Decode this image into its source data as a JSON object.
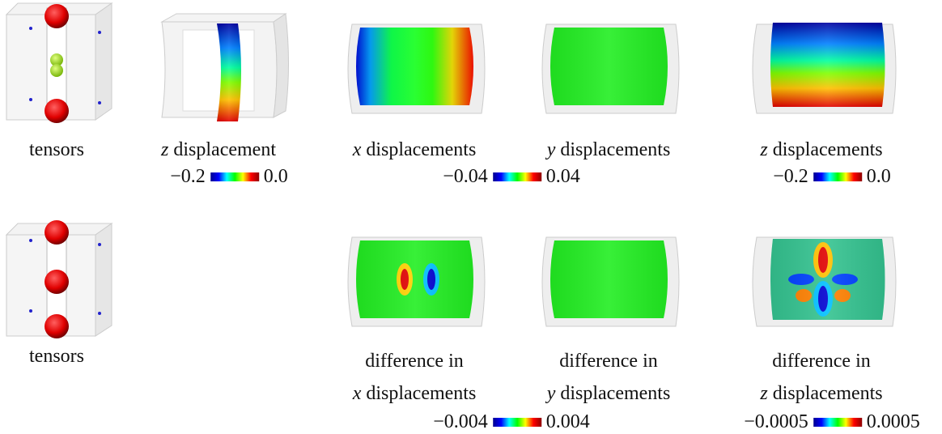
{
  "rows": [
    {
      "captions": [
        {
          "text": "tensors"
        },
        {
          "variable": "z",
          "text": "displacement"
        },
        {
          "variable": "x",
          "text": "displacements"
        },
        {
          "variable": "y",
          "text": "displacements"
        },
        {
          "variable": "z",
          "text": "displacements"
        }
      ],
      "colorbars": [
        {
          "min": "−0.2",
          "max": "0.0"
        },
        {
          "min": "−0.04",
          "max": "0.04"
        },
        {
          "min": "−0.2",
          "max": "0.0"
        }
      ]
    },
    {
      "captions": [
        {
          "text": "tensors"
        },
        {
          "line1": "difference in",
          "variable": "x",
          "text": "displacements"
        },
        {
          "line1": "difference in",
          "variable": "y",
          "text": "displacements"
        },
        {
          "line1": "difference in",
          "variable": "z",
          "text": "displacements"
        }
      ],
      "colorbars": [
        {
          "min": "−0.004",
          "max": "0.004"
        },
        {
          "min": "−0.0005",
          "max": "0.0005"
        }
      ]
    }
  ]
}
